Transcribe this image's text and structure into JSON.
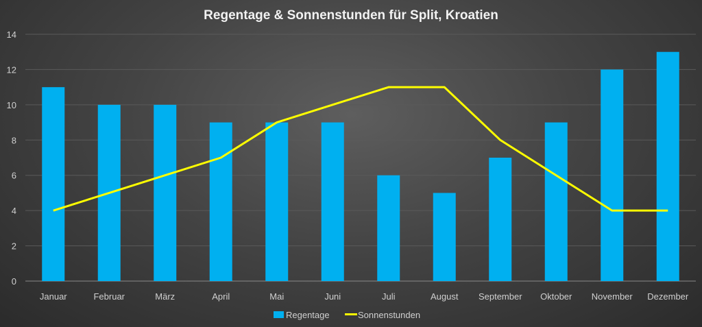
{
  "chart_data": {
    "type": "bar",
    "title": "Regentage & Sonnenstunden für Split, Kroatien",
    "categories": [
      "Januar",
      "Februar",
      "März",
      "April",
      "Mai",
      "Juni",
      "Juli",
      "August",
      "September",
      "Oktober",
      "November",
      "Dezember"
    ],
    "series": [
      {
        "name": "Regentage",
        "type": "bar",
        "color": "#00b0f0",
        "values": [
          11,
          10,
          10,
          9,
          9,
          9,
          6,
          5,
          7,
          9,
          12,
          13
        ]
      },
      {
        "name": "Sonnenstunden",
        "type": "line",
        "color": "#ffff00",
        "values": [
          4,
          5,
          6,
          7,
          9,
          10,
          11,
          11,
          8,
          6,
          4,
          4
        ]
      }
    ],
    "ylim": [
      0,
      14
    ],
    "yticks": [
      "0",
      "2",
      "4",
      "6",
      "8",
      "10",
      "12",
      "14"
    ],
    "grid": true,
    "legend": "bottom"
  }
}
